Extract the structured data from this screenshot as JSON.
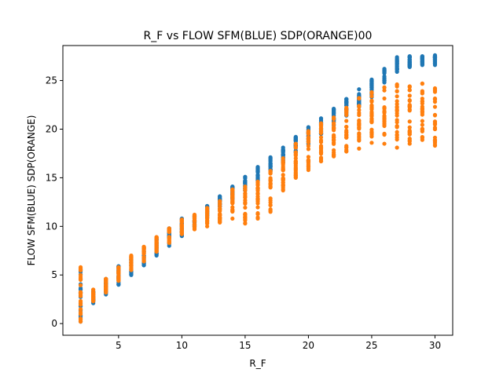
{
  "chart_data": {
    "type": "scatter",
    "title": "R_F vs FLOW SFM(BLUE) SDP(ORANGE)00",
    "xlabel": "R_F",
    "ylabel": "FLOW SFM(BLUE) SDP(ORANGE)",
    "xlim": [
      0.6,
      31.4
    ],
    "ylim": [
      -1.2,
      28.6
    ],
    "xticks": [
      5,
      10,
      15,
      20,
      25,
      30
    ],
    "yticks": [
      0,
      5,
      10,
      15,
      20,
      25
    ],
    "grid": false,
    "legend": "none",
    "series": [
      {
        "color": "#1f77b4",
        "points": [
          {
            "x": 2,
            "min": 0.2,
            "max": 5.6
          },
          {
            "x": 3,
            "min": 2.1,
            "max": 3.3
          },
          {
            "x": 4,
            "min": 3.0,
            "max": 4.6
          },
          {
            "x": 5,
            "min": 4.0,
            "max": 5.9
          },
          {
            "x": 6,
            "min": 5.0,
            "max": 6.8
          },
          {
            "x": 7,
            "min": 6.0,
            "max": 7.8
          },
          {
            "x": 8,
            "min": 7.0,
            "max": 8.8
          },
          {
            "x": 9,
            "min": 8.0,
            "max": 9.8
          },
          {
            "x": 10,
            "min": 9.0,
            "max": 10.8
          },
          {
            "x": 11,
            "min": 9.9,
            "max": 11.1
          },
          {
            "x": 12,
            "min": 10.9,
            "max": 12.1
          },
          {
            "x": 13,
            "min": 11.8,
            "max": 13.1
          },
          {
            "x": 14,
            "min": 12.8,
            "max": 14.1
          },
          {
            "x": 15,
            "min": 13.7,
            "max": 15.1
          },
          {
            "x": 16,
            "min": 14.7,
            "max": 16.1
          },
          {
            "x": 17,
            "min": 15.6,
            "max": 17.1
          },
          {
            "x": 18,
            "min": 16.6,
            "max": 18.1
          },
          {
            "x": 19,
            "min": 17.6,
            "max": 19.2
          },
          {
            "x": 20,
            "min": 18.5,
            "max": 20.2
          },
          {
            "x": 21,
            "min": 19.5,
            "max": 21.1
          },
          {
            "x": 22,
            "min": 20.4,
            "max": 22.1
          },
          {
            "x": 23,
            "min": 21.4,
            "max": 23.1
          },
          {
            "x": 24,
            "min": 22.3,
            "max": 24.1
          },
          {
            "x": 25,
            "min": 23.3,
            "max": 25.1
          },
          {
            "x": 26,
            "min": 24.8,
            "max": 26.2
          },
          {
            "x": 27,
            "min": 25.9,
            "max": 27.4
          },
          {
            "x": 28,
            "min": 26.4,
            "max": 27.5
          },
          {
            "x": 29,
            "min": 26.6,
            "max": 27.5
          },
          {
            "x": 30,
            "min": 26.6,
            "max": 27.6
          }
        ]
      },
      {
        "color": "#ff7f0e",
        "points": [
          {
            "x": 2,
            "min": 0.2,
            "max": 5.8
          },
          {
            "x": 3,
            "min": 2.3,
            "max": 3.5
          },
          {
            "x": 4,
            "min": 3.2,
            "max": 4.6
          },
          {
            "x": 5,
            "min": 4.4,
            "max": 5.8
          },
          {
            "x": 6,
            "min": 5.5,
            "max": 7.0
          },
          {
            "x": 7,
            "min": 6.4,
            "max": 7.9
          },
          {
            "x": 8,
            "min": 7.4,
            "max": 8.9
          },
          {
            "x": 9,
            "min": 8.3,
            "max": 9.8
          },
          {
            "x": 10,
            "min": 9.2,
            "max": 10.7
          },
          {
            "x": 11,
            "min": 9.7,
            "max": 11.2
          },
          {
            "x": 12,
            "min": 10.0,
            "max": 11.9
          },
          {
            "x": 13,
            "min": 10.4,
            "max": 12.6
          },
          {
            "x": 14,
            "min": 10.8,
            "max": 13.8
          },
          {
            "x": 15,
            "min": 10.3,
            "max": 14.1
          },
          {
            "x": 16,
            "min": 10.8,
            "max": 14.6
          },
          {
            "x": 17,
            "min": 11.5,
            "max": 15.7
          },
          {
            "x": 18,
            "min": 13.7,
            "max": 17.0
          },
          {
            "x": 19,
            "min": 15.0,
            "max": 18.5
          },
          {
            "x": 20,
            "min": 15.8,
            "max": 19.8
          },
          {
            "x": 21,
            "min": 16.7,
            "max": 20.6
          },
          {
            "x": 22,
            "min": 17.2,
            "max": 21.2
          },
          {
            "x": 23,
            "min": 17.7,
            "max": 22.2
          },
          {
            "x": 24,
            "min": 18.0,
            "max": 23.2
          },
          {
            "x": 25,
            "min": 18.6,
            "max": 23.8
          },
          {
            "x": 26,
            "min": 18.5,
            "max": 24.3
          },
          {
            "x": 27,
            "min": 18.1,
            "max": 24.6
          },
          {
            "x": 28,
            "min": 18.5,
            "max": 24.4
          },
          {
            "x": 29,
            "min": 18.9,
            "max": 24.7
          },
          {
            "x": 30,
            "min": 18.3,
            "max": 24.2
          }
        ]
      }
    ]
  }
}
